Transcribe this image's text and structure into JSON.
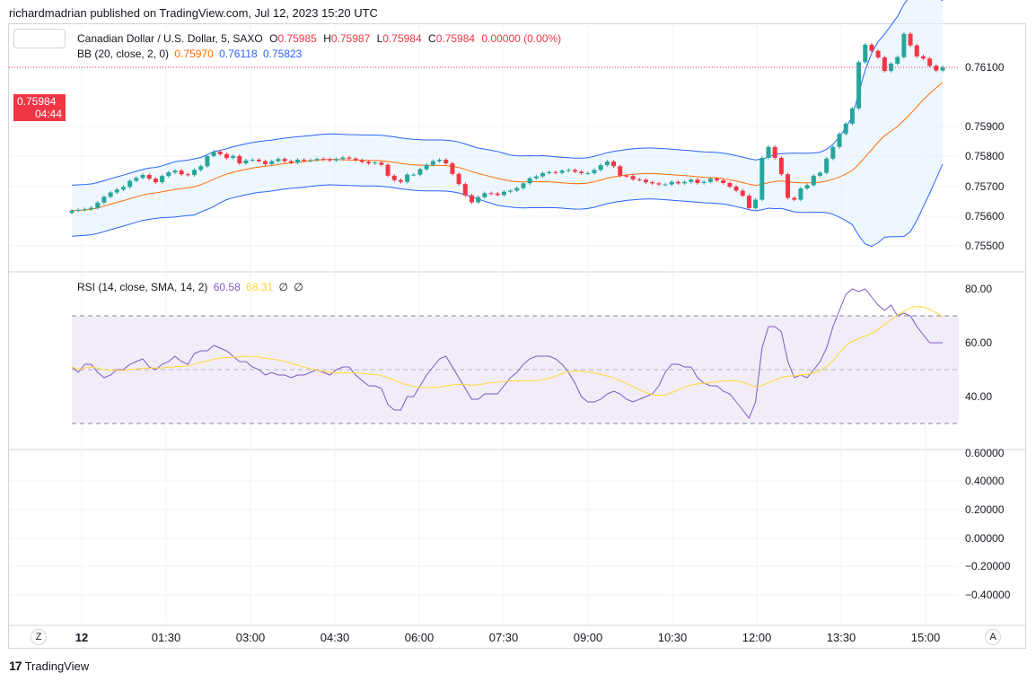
{
  "attribution": "richardmadrian published on TradingView.com, Jul 12, 2023 15:20 UTC",
  "footer": {
    "brand": "TradingView",
    "left_button": "Z",
    "right_button": "A"
  },
  "legend": {
    "symbol": "Canadian Dollar / U.S. Dollar, 5, SAXO",
    "o_label": "O",
    "o_value": "0.75985",
    "h_label": "H",
    "h_value": "0.75987",
    "l_label": "L",
    "l_value": "0.75984",
    "c_label": "C",
    "c_value": "0.75984",
    "change": "0.00000 (0.00%)",
    "bb_label": "BB (20, close, 2, 0)",
    "bb_basis": "0.75970",
    "bb_upper": "0.76118",
    "bb_lower": "0.75823",
    "rsi_label": "RSI (14, close, SMA, 14, 2)",
    "rsi_value": "60.58",
    "rsi_sma": "68.31",
    "rsi_extra1": "∅",
    "rsi_extra2": "∅"
  },
  "price_tag": {
    "value": "0.75984",
    "countdown": "04:44"
  },
  "colors": {
    "up": "#26a69a",
    "down": "#f23645",
    "bb_basis": "#ff6d00",
    "bb_band": "#2962ff",
    "bb_fill": "#e3f2fd",
    "rsi_line": "#7e57c2",
    "rsi_sma": "#fdd835",
    "rsi_fill": "#ede7f6"
  },
  "chart_data": [
    {
      "type": "candlestick",
      "title": "Canadian Dollar / U.S. Dollar, 5, SAXO",
      "x_ticks": [
        "12",
        "01:30",
        "03:00",
        "04:30",
        "06:00",
        "07:30",
        "09:00",
        "10:30",
        "12:00",
        "13:30",
        "15:00"
      ],
      "y_ticks": [
        "0.76100",
        "0.75900",
        "0.75800",
        "0.75700",
        "0.75600",
        "0.75500"
      ],
      "ylim": [
        0.75476,
        0.76122
      ],
      "last_price": 0.75984,
      "close": [
        0.7559,
        0.75592,
        0.75594,
        0.75598,
        0.75612,
        0.75628,
        0.7564,
        0.75648,
        0.75655,
        0.75672,
        0.7568,
        0.75688,
        0.75678,
        0.75668,
        0.75685,
        0.75695,
        0.757,
        0.7569,
        0.75688,
        0.75702,
        0.75712,
        0.7574,
        0.75752,
        0.75745,
        0.75735,
        0.7574,
        0.7572,
        0.75728,
        0.7573,
        0.75726,
        0.75718,
        0.75726,
        0.75732,
        0.75726,
        0.75722,
        0.7573,
        0.75727,
        0.75729,
        0.75732,
        0.75731,
        0.75728,
        0.75732,
        0.75736,
        0.75733,
        0.75729,
        0.75724,
        0.7572,
        0.75722,
        0.75716,
        0.75686,
        0.75674,
        0.75669,
        0.75689,
        0.75689,
        0.75704,
        0.75716,
        0.75726,
        0.7573,
        0.7572,
        0.75691,
        0.75663,
        0.75632,
        0.75613,
        0.75627,
        0.75638,
        0.75637,
        0.75633,
        0.75642,
        0.75645,
        0.75652,
        0.75665,
        0.75679,
        0.75684,
        0.75693,
        0.75696,
        0.75694,
        0.757,
        0.75702,
        0.75697,
        0.75693,
        0.75693,
        0.75702,
        0.75715,
        0.75725,
        0.75712,
        0.75686,
        0.75685,
        0.75676,
        0.75675,
        0.75668,
        0.75665,
        0.75662,
        0.75662,
        0.75669,
        0.75665,
        0.75669,
        0.75675,
        0.75666,
        0.75669,
        0.75678,
        0.75673,
        0.75666,
        0.75656,
        0.75645,
        0.75631,
        0.75597,
        0.7562,
        0.75735,
        0.75765,
        0.75735,
        0.7569,
        0.75625,
        0.7562,
        0.75651,
        0.7566,
        0.75686,
        0.75694,
        0.75733,
        0.75765,
        0.75801,
        0.75829,
        0.75871,
        0.75998,
        0.76046,
        0.76029,
        0.76011,
        0.75974,
        0.75994,
        0.76012,
        0.76076,
        0.76044,
        0.76014,
        0.76008,
        0.75988,
        0.75975,
        0.75984
      ]
    },
    {
      "type": "line",
      "title": "RSI (14, close, SMA, 14, 2)",
      "y_ticks": [
        "80.00",
        "60.00",
        "40.00"
      ],
      "ylim": [
        26,
        86
      ],
      "bands": [
        70,
        50,
        30
      ],
      "series": [
        {
          "name": "RSI",
          "values": [
            51,
            49,
            52,
            52,
            49,
            47,
            48,
            50,
            50,
            52,
            53,
            54,
            51,
            50,
            52,
            53,
            55,
            53,
            52,
            56,
            57,
            57,
            59,
            58,
            57,
            55,
            53,
            53,
            51,
            50,
            48,
            49,
            48,
            48,
            47,
            48,
            48,
            49,
            50,
            49,
            48,
            50,
            51,
            51,
            48,
            46,
            44,
            44,
            43,
            37,
            35,
            35,
            40,
            40,
            44,
            48,
            51,
            54,
            55,
            51,
            47,
            43,
            39,
            39,
            41,
            41,
            41,
            44,
            47,
            49,
            52,
            54,
            55,
            55,
            55,
            54,
            52,
            49,
            45,
            40,
            38,
            38,
            39,
            41,
            42,
            41,
            39,
            38,
            39,
            40,
            41,
            44,
            49,
            52,
            52,
            51,
            51,
            47,
            45,
            44,
            44,
            42,
            41,
            38,
            35,
            32,
            38,
            58,
            66,
            66,
            64,
            53,
            47,
            48,
            47,
            50,
            53,
            58,
            66,
            72,
            78,
            80,
            79,
            80,
            77,
            74,
            72,
            74,
            70,
            71,
            70,
            66,
            63,
            60,
            60,
            60
          ]
        },
        {
          "name": "SMA",
          "values": []
        }
      ]
    },
    {
      "type": "line",
      "title": "",
      "y_ticks": [
        "0.60000",
        "0.40000",
        "0.20000",
        "0.00000",
        "−0.20000",
        "−0.40000"
      ],
      "ylim": [
        -0.5,
        0.62
      ],
      "series": []
    }
  ]
}
